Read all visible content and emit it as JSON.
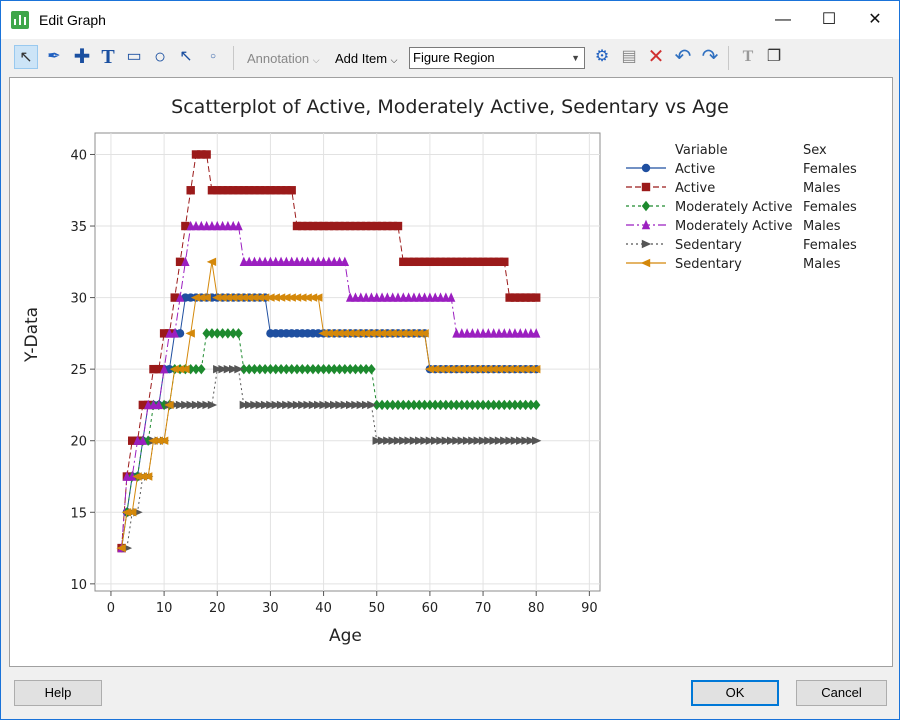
{
  "window": {
    "title": "Edit Graph",
    "minimize_icon": "minimize-icon",
    "maximize_icon": "maximize-icon",
    "close_icon": "close-icon"
  },
  "toolbar": {
    "tools": [
      "select-tool-icon",
      "brush-icon",
      "crosshair-icon",
      "text-tool-icon",
      "rectangle-tool-icon",
      "ellipse-tool-icon",
      "arrow-tool-icon",
      "point-tool-icon"
    ],
    "annotation_label": "Annotation",
    "add_item_label": "Add Item",
    "region_value": "Figure Region",
    "actions": [
      "edit-region-icon",
      "properties-icon",
      "delete-icon",
      "undo-icon",
      "redo-icon",
      "text-format-icon",
      "copy-graph-icon"
    ]
  },
  "buttons": {
    "help": "Help",
    "ok": "OK",
    "cancel": "Cancel"
  },
  "chart_data": {
    "type": "scatter",
    "title": "Scatterplot of Active, Moderately Active, Sedentary vs Age",
    "xlabel": "Age",
    "ylabel": "Y-Data",
    "xlim": [
      -3,
      92
    ],
    "ylim": [
      9.5,
      41.5
    ],
    "xticks": [
      0,
      10,
      20,
      30,
      40,
      50,
      60,
      70,
      80,
      90
    ],
    "yticks": [
      10,
      15,
      20,
      25,
      30,
      35,
      40
    ],
    "grid": true,
    "legend": {
      "placement": "right",
      "header_variable": "Variable",
      "header_sex": "Sex"
    },
    "series": [
      {
        "name": "Active",
        "sex": "Females",
        "color": "#1f4fa0",
        "marker": "circle",
        "dash": "none",
        "steps": [
          [
            2,
            12.5
          ],
          [
            3,
            15
          ],
          [
            4,
            17.5
          ],
          [
            6,
            20
          ],
          [
            7,
            22.5
          ],
          [
            10,
            25
          ],
          [
            12,
            27.5
          ],
          [
            14,
            30
          ],
          [
            30,
            27.5
          ],
          [
            60,
            25
          ],
          [
            80,
            25
          ]
        ]
      },
      {
        "name": "Active",
        "sex": "Males",
        "color": "#9b1a1a",
        "marker": "square",
        "dash": "6,3",
        "steps": [
          [
            2,
            12.5
          ],
          [
            3,
            17.5
          ],
          [
            4,
            20
          ],
          [
            6,
            22.5
          ],
          [
            8,
            25
          ],
          [
            10,
            27.5
          ],
          [
            12,
            30
          ],
          [
            13,
            32.5
          ],
          [
            14,
            35
          ],
          [
            15,
            37.5
          ],
          [
            16,
            40
          ],
          [
            19,
            37.5
          ],
          [
            35,
            35
          ],
          [
            55,
            32.5
          ],
          [
            75,
            30
          ],
          [
            80,
            30
          ]
        ]
      },
      {
        "name": "Moderately Active",
        "sex": "Females",
        "color": "#1d8a2e",
        "marker": "diamond",
        "dash": "3,3",
        "steps": [
          [
            3,
            15
          ],
          [
            4,
            17.5
          ],
          [
            6,
            20
          ],
          [
            8,
            22.5
          ],
          [
            12,
            25
          ],
          [
            18,
            27.5
          ],
          [
            25,
            25
          ],
          [
            50,
            22.5
          ],
          [
            80,
            22.5
          ]
        ]
      },
      {
        "name": "Moderately Active",
        "sex": "Males",
        "color": "#9b1fc0",
        "marker": "triangle-up",
        "dash": "8,3,2,3",
        "steps": [
          [
            2,
            12.5
          ],
          [
            3,
            17.5
          ],
          [
            5,
            20
          ],
          [
            7,
            22.5
          ],
          [
            10,
            25
          ],
          [
            11,
            27.5
          ],
          [
            13,
            30
          ],
          [
            14,
            32.5
          ],
          [
            15,
            35
          ],
          [
            25,
            32.5
          ],
          [
            45,
            30
          ],
          [
            65,
            27.5
          ],
          [
            80,
            27.5
          ]
        ]
      },
      {
        "name": "Sedentary",
        "sex": "Females",
        "color": "#555555",
        "marker": "triangle-right",
        "dash": "2,3",
        "steps": [
          [
            3,
            12.5
          ],
          [
            4,
            15
          ],
          [
            6,
            17.5
          ],
          [
            8,
            20
          ],
          [
            11,
            22.5
          ],
          [
            15,
            22.5
          ],
          [
            20,
            25
          ],
          [
            25,
            22.5
          ],
          [
            50,
            20
          ],
          [
            80,
            20
          ]
        ]
      },
      {
        "name": "Sedentary",
        "sex": "Males",
        "color": "#d4880a",
        "marker": "triangle-left",
        "dash": "none",
        "steps": [
          [
            2,
            12.5
          ],
          [
            3,
            15
          ],
          [
            5,
            17.5
          ],
          [
            8,
            20
          ],
          [
            11,
            22.5
          ],
          [
            12,
            25
          ],
          [
            15,
            27.5
          ],
          [
            16,
            30
          ],
          [
            19,
            32.5
          ],
          [
            20,
            30
          ],
          [
            40,
            27.5
          ],
          [
            60,
            25
          ],
          [
            80,
            25
          ]
        ]
      }
    ]
  }
}
